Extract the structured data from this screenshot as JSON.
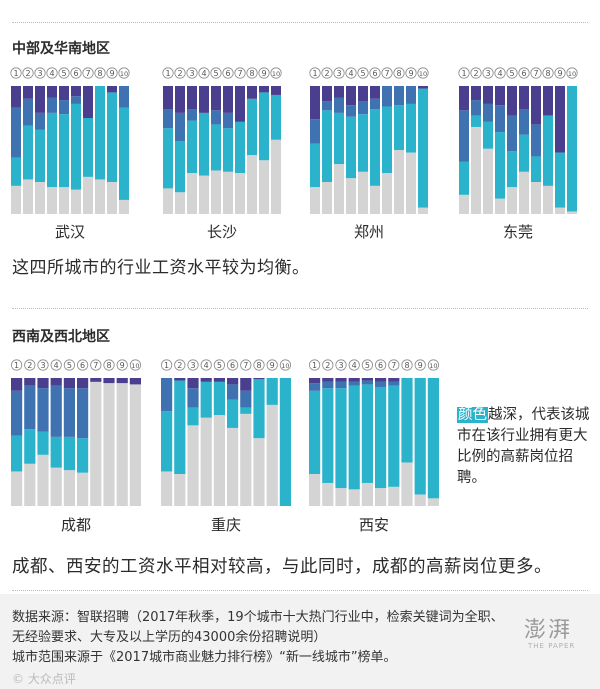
{
  "sections": {
    "central_south": "中部及华南地区",
    "southwest_northwest": "西南及西北地区"
  },
  "index_labels": [
    "1",
    "2",
    "3",
    "4",
    "5",
    "6",
    "7",
    "8",
    "9",
    "10"
  ],
  "colors": {
    "level1": "#4a3f8f",
    "level2": "#3f72b0",
    "level3": "#2bb3cc",
    "level4": "#d4d4d4"
  },
  "chart_data": [
    {
      "type": "stacked-bar",
      "city": "武汉",
      "categories": [
        "1",
        "2",
        "3",
        "4",
        "5",
        "6",
        "7",
        "8",
        "9",
        "10"
      ],
      "ylim": [
        0,
        100
      ],
      "series": [
        {
          "name": "level4",
          "values": [
            22,
            27,
            25,
            21,
            21,
            19,
            29,
            27,
            25,
            11
          ]
        },
        {
          "name": "level3",
          "values": [
            22,
            42,
            41,
            58,
            57,
            67,
            46,
            73,
            70,
            72
          ]
        },
        {
          "name": "level2",
          "values": [
            39,
            21,
            13,
            12,
            11,
            6,
            0,
            0,
            0,
            17
          ]
        },
        {
          "name": "level1",
          "values": [
            17,
            10,
            21,
            9,
            11,
            8,
            25,
            0,
            5,
            0
          ]
        }
      ]
    },
    {
      "type": "stacked-bar",
      "city": "长沙",
      "categories": [
        "1",
        "2",
        "3",
        "4",
        "5",
        "6",
        "7",
        "8",
        "9",
        "10"
      ],
      "ylim": [
        0,
        100
      ],
      "series": [
        {
          "name": "level4",
          "values": [
            20,
            17,
            32,
            30,
            34,
            33,
            32,
            46,
            42,
            58
          ]
        },
        {
          "name": "level3",
          "values": [
            47,
            40,
            41,
            49,
            36,
            34,
            40,
            44,
            53,
            35
          ]
        },
        {
          "name": "level2",
          "values": [
            15,
            22,
            9,
            0,
            11,
            12,
            0,
            0,
            0,
            0
          ]
        },
        {
          "name": "level1",
          "values": [
            18,
            21,
            18,
            21,
            19,
            21,
            28,
            10,
            5,
            7
          ]
        }
      ]
    },
    {
      "type": "stacked-bar",
      "city": "郑州",
      "categories": [
        "1",
        "2",
        "3",
        "4",
        "5",
        "6",
        "7",
        "8",
        "9",
        "10"
      ],
      "ylim": [
        0,
        100
      ],
      "series": [
        {
          "name": "level4",
          "values": [
            21,
            25,
            39,
            28,
            33,
            22,
            32,
            50,
            48,
            5
          ]
        },
        {
          "name": "level3",
          "values": [
            34,
            56,
            40,
            48,
            45,
            60,
            52,
            35,
            38,
            93
          ]
        },
        {
          "name": "level2",
          "values": [
            19,
            7,
            12,
            9,
            10,
            8,
            16,
            15,
            14,
            0
          ]
        },
        {
          "name": "level1",
          "values": [
            26,
            12,
            9,
            15,
            12,
            10,
            0,
            0,
            0,
            2
          ]
        }
      ]
    },
    {
      "type": "stacked-bar",
      "city": "东莞",
      "categories": [
        "1",
        "2",
        "3",
        "4",
        "5",
        "6",
        "7",
        "8",
        "9",
        "10"
      ],
      "ylim": [
        0,
        100
      ],
      "series": [
        {
          "name": "level4",
          "values": [
            15,
            68,
            51,
            12,
            21,
            33,
            25,
            22,
            5,
            2
          ]
        },
        {
          "name": "level3",
          "values": [
            26,
            9,
            21,
            52,
            28,
            29,
            20,
            55,
            43,
            98
          ]
        },
        {
          "name": "level2",
          "values": [
            40,
            12,
            14,
            21,
            28,
            20,
            25,
            0,
            0,
            0
          ]
        },
        {
          "name": "level1",
          "values": [
            19,
            11,
            14,
            15,
            23,
            18,
            30,
            23,
            52,
            0
          ]
        }
      ]
    },
    {
      "type": "stacked-bar",
      "city": "成都",
      "categories": [
        "1",
        "2",
        "3",
        "4",
        "5",
        "6",
        "7",
        "8",
        "9",
        "10"
      ],
      "ylim": [
        0,
        100
      ],
      "series": [
        {
          "name": "level4",
          "values": [
            27,
            33,
            40,
            30,
            28,
            26,
            97,
            96,
            96,
            95
          ]
        },
        {
          "name": "level3",
          "values": [
            28,
            27,
            18,
            24,
            26,
            27,
            0,
            0,
            0,
            0
          ]
        },
        {
          "name": "level2",
          "values": [
            35,
            34,
            34,
            40,
            38,
            39,
            0,
            0,
            0,
            0
          ]
        },
        {
          "name": "level1",
          "values": [
            10,
            6,
            8,
            6,
            8,
            8,
            3,
            4,
            4,
            5
          ]
        }
      ]
    },
    {
      "type": "stacked-bar",
      "city": "重庆",
      "categories": [
        "1",
        "2",
        "3",
        "4",
        "5",
        "6",
        "7",
        "8",
        "9",
        "10"
      ],
      "ylim": [
        0,
        100
      ],
      "series": [
        {
          "name": "level4",
          "values": [
            27,
            25,
            63,
            69,
            71,
            61,
            72,
            53,
            79,
            0
          ]
        },
        {
          "name": "level3",
          "values": [
            47,
            73,
            14,
            28,
            26,
            22,
            5,
            46,
            21,
            100
          ]
        },
        {
          "name": "level2",
          "values": [
            26,
            0,
            15,
            0,
            0,
            12,
            13,
            0,
            0,
            0
          ]
        },
        {
          "name": "level1",
          "values": [
            0,
            2,
            8,
            3,
            3,
            5,
            10,
            1,
            0,
            0
          ]
        }
      ]
    },
    {
      "type": "stacked-bar",
      "city": "西安",
      "categories": [
        "1",
        "2",
        "3",
        "4",
        "5",
        "6",
        "7",
        "8",
        "9",
        "10"
      ],
      "ylim": [
        0,
        100
      ],
      "series": [
        {
          "name": "level4",
          "values": [
            25,
            18,
            14,
            13,
            18,
            14,
            15,
            34,
            9,
            6
          ]
        },
        {
          "name": "level3",
          "values": [
            65,
            74,
            78,
            81,
            77,
            79,
            79,
            66,
            91,
            94
          ]
        },
        {
          "name": "level2",
          "values": [
            6,
            5,
            5,
            3,
            3,
            4,
            3,
            0,
            0,
            0
          ]
        },
        {
          "name": "level1",
          "values": [
            4,
            3,
            3,
            3,
            2,
            3,
            3,
            0,
            0,
            0
          ]
        }
      ]
    }
  ],
  "captions": {
    "first": "这四所城市的行业工资水平较为均衡。",
    "second": "成都、西安的工资水平相对较高，与此同时，成都的高薪岗位更多。"
  },
  "legend": {
    "highlight": "颜色",
    "rest": "越深，代表该城市在该行业拥有更大比例的高薪岗位招聘。"
  },
  "source": {
    "line1": "数据来源：智联招聘（2017年秋季，19个城市十大热门行业中，检索关键词为全职、无经验要求、大专及以上学历的43000余份招聘说明）",
    "line2": "城市范围来源于《2017城市商业魅力排行榜》“新一线城市”榜单。"
  },
  "logo": {
    "name": "澎湃",
    "sub": "THE PAPER"
  },
  "watermark": "© 大众点评"
}
